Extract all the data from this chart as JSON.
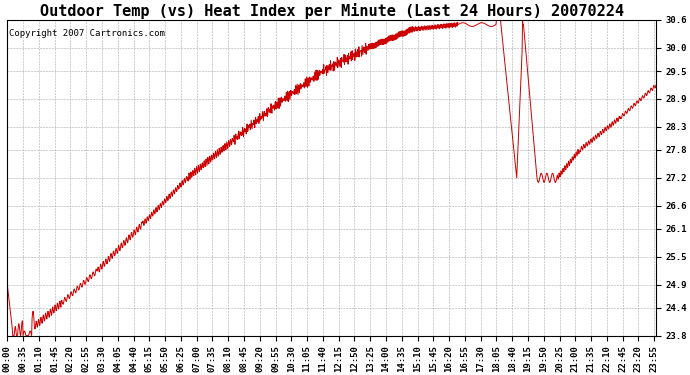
{
  "title": "Outdoor Temp (vs) Heat Index per Minute (Last 24 Hours) 20070224",
  "copyright": "Copyright 2007 Cartronics.com",
  "ymin": 23.8,
  "ymax": 30.6,
  "yticks": [
    30.6,
    30.0,
    29.5,
    28.9,
    28.3,
    27.8,
    27.2,
    26.6,
    26.1,
    25.5,
    24.9,
    24.4,
    23.8
  ],
  "xtick_labels": [
    "00:00",
    "00:35",
    "01:10",
    "01:45",
    "02:20",
    "02:55",
    "03:30",
    "04:05",
    "04:40",
    "05:15",
    "05:50",
    "06:25",
    "07:00",
    "07:35",
    "08:10",
    "08:45",
    "09:20",
    "09:55",
    "10:30",
    "11:05",
    "11:40",
    "12:15",
    "12:50",
    "13:25",
    "14:00",
    "14:35",
    "15:10",
    "15:45",
    "16:20",
    "16:55",
    "17:30",
    "18:05",
    "18:40",
    "19:15",
    "19:50",
    "20:25",
    "21:00",
    "21:35",
    "22:10",
    "22:45",
    "23:20",
    "23:55"
  ],
  "line_color": "#cc0000",
  "background_color": "#ffffff",
  "grid_color": "#aaaaaa",
  "title_fontsize": 11,
  "copyright_fontsize": 6.5,
  "tick_fontsize": 6.5
}
